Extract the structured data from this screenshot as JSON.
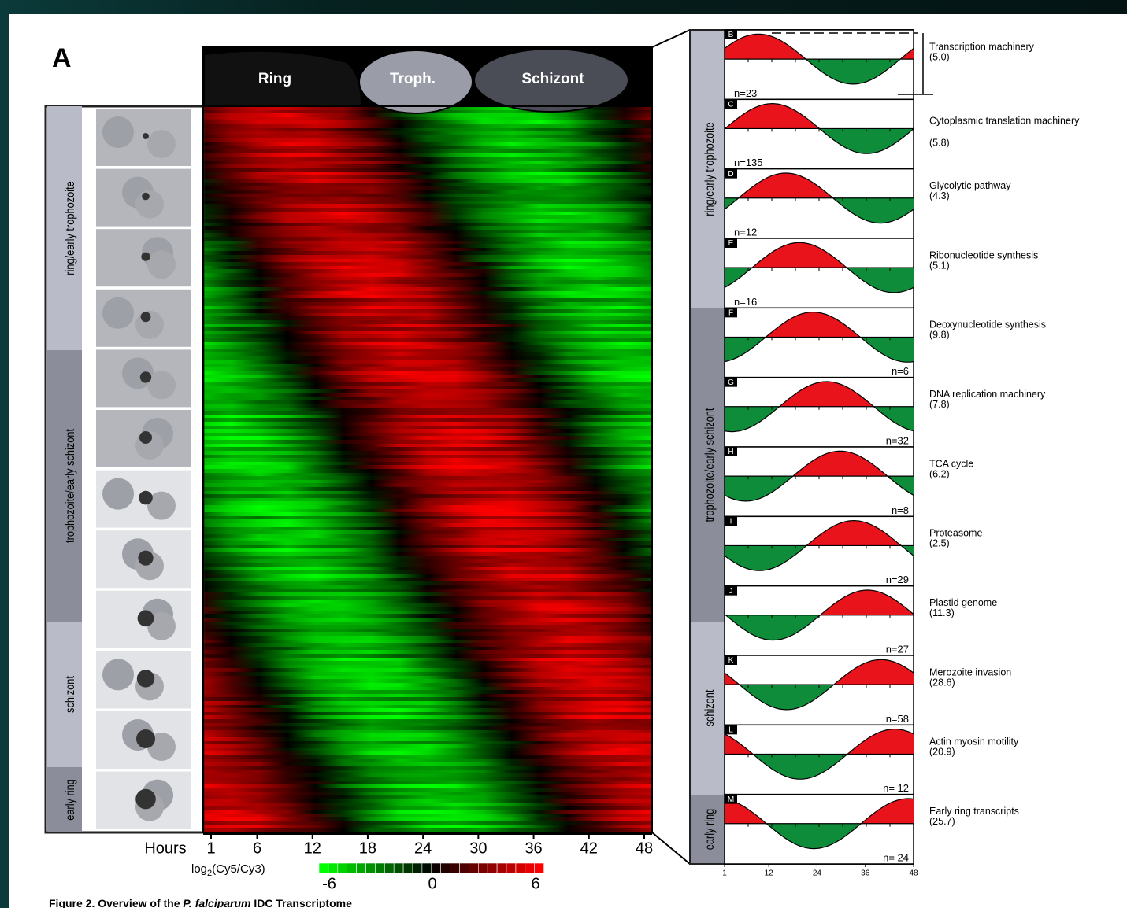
{
  "figure": {
    "panel_label": "A",
    "stages": [
      "Ring",
      "Troph.",
      "Schizont"
    ],
    "side_labels": [
      "ring/early trophozoite",
      "trophozoite/early schizont",
      "schizont",
      "early ring"
    ],
    "hours": {
      "label": "Hours",
      "ticks": [
        1,
        6,
        12,
        18,
        24,
        30,
        36,
        42,
        48
      ]
    },
    "colorbar": {
      "label_prefix": "log",
      "label_sub": "2",
      "label_suffix": "(Cy5/Cy3)",
      "ticks": [
        -6,
        0,
        6
      ]
    },
    "profiles": [
      {
        "letter": "B",
        "n": "n=23",
        "name": "Transcription machinery",
        "score": "(5.0)"
      },
      {
        "letter": "C",
        "n": "n=135",
        "name": "Cytoplasmic translation machinery",
        "score": "(5.8)"
      },
      {
        "letter": "D",
        "n": "n=12",
        "name": "Glycolytic pathway",
        "score": "(4.3)"
      },
      {
        "letter": "E",
        "n": "n=16",
        "name": "Ribonucleotide synthesis",
        "score": "(5.1)"
      },
      {
        "letter": "F",
        "n": "n=6",
        "name": "Deoxynucleotide synthesis",
        "score": "(9.8)"
      },
      {
        "letter": "G",
        "n": "n=32",
        "name": "DNA replication machinery",
        "score": "(7.8)"
      },
      {
        "letter": "H",
        "n": "n=8",
        "name": "TCA cycle",
        "score": "(6.2)"
      },
      {
        "letter": "I",
        "n": "n=29",
        "name": "Proteasome",
        "score": "(2.5)"
      },
      {
        "letter": "J",
        "n": "n=27",
        "name": "Plastid genome",
        "score": "(11.3)"
      },
      {
        "letter": "K",
        "n": "n=58",
        "name": "Merozoite invasion",
        "score": "(28.6)"
      },
      {
        "letter": "L",
        "n": "n= 12",
        "name": "Actin myosin motility",
        "score": "(20.9)"
      },
      {
        "letter": "M",
        "n": "n= 24",
        "name": "Early ring transcripts",
        "score": "(25.7)"
      }
    ],
    "profile_axis_ticks": [
      1,
      12,
      24,
      36,
      48
    ],
    "caption": {
      "prefix": "Figure 2. Overview of the ",
      "italic": "P. falciparum",
      "suffix": " IDC Transcriptome"
    }
  }
}
